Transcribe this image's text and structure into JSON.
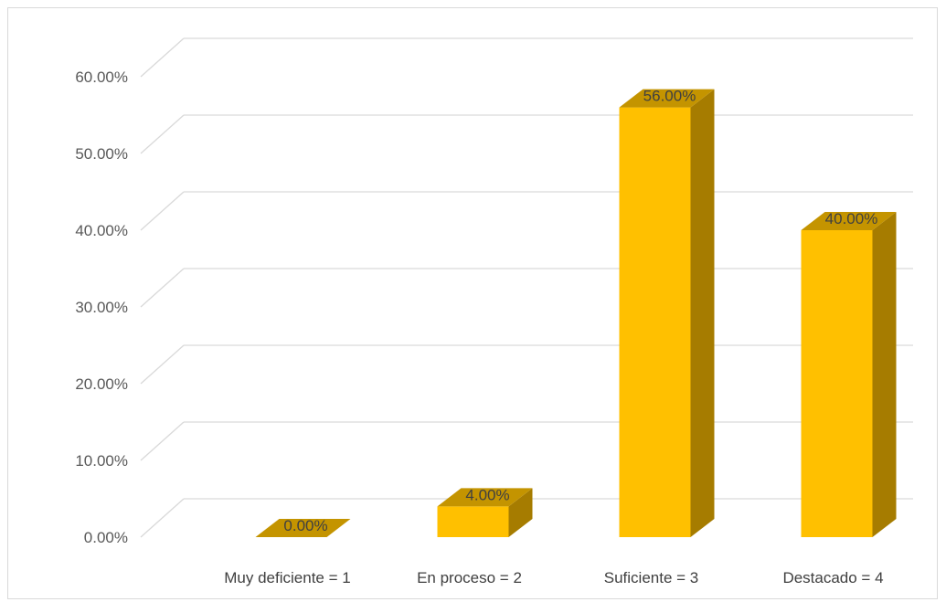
{
  "chart_data": {
    "type": "bar",
    "style": "3d-column",
    "title": "",
    "xlabel": "",
    "ylabel": "",
    "categories": [
      "Muy deficiente = 1",
      "En proceso = 2",
      "Suficiente = 3",
      "Destacado = 4"
    ],
    "values": [
      0.0,
      4.0,
      56.0,
      40.0
    ],
    "data_labels": [
      "0.00%",
      "4.00%",
      "56.00%",
      "40.00%"
    ],
    "y_ticks": [
      0,
      10,
      20,
      30,
      40,
      50,
      60
    ],
    "y_tick_labels": [
      "0.00%",
      "10.00%",
      "20.00%",
      "30.00%",
      "40.00%",
      "50.00%",
      "60.00%"
    ],
    "ylim": [
      0,
      60
    ],
    "grid": true,
    "legend": "none",
    "colors": {
      "bar_front": "#FFC000",
      "bar_side": "#A67C00",
      "bar_top": "#C49400",
      "gridline": "#d9d9d9",
      "axis_text": "#595959"
    }
  }
}
